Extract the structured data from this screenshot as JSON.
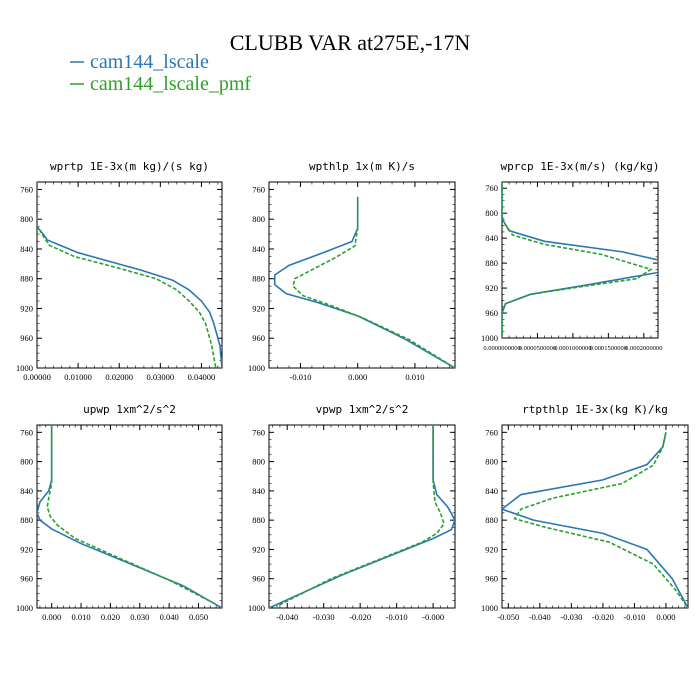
{
  "figure": {
    "title": "CLUBB VAR at275E,-17N",
    "legend": [
      {
        "label": "cam144_lscale",
        "color": "#2a77b4",
        "dash": "solid"
      },
      {
        "label": "cam144_lscale_pmf",
        "color": "#2ca02c",
        "dash": "dashed"
      }
    ]
  },
  "chart_data": [
    {
      "type": "line",
      "title": "wprtp  1E-3x(m kg)/(s kg)",
      "xlim": [
        0.0,
        0.045
      ],
      "ylim": [
        1000,
        750
      ],
      "yticks": [
        760,
        800,
        840,
        880,
        920,
        960,
        1000
      ],
      "yticklabels": [
        "760",
        "800",
        "840",
        "880",
        "920",
        "960",
        "1000"
      ],
      "xticks": [
        0.0,
        0.01,
        0.02,
        0.03,
        0.04
      ],
      "xticklabels": [
        "0.00000",
        "0.01000",
        "0.02000",
        "0.03000",
        "0.04000"
      ],
      "series": [
        {
          "x": [
            0.0,
            0.0,
            0.0015,
            0.0025,
            0.01,
            0.025,
            0.033,
            0.037,
            0.04,
            0.042,
            0.043,
            0.0445,
            0.045
          ],
          "y": [
            750,
            810,
            820,
            828,
            845,
            868,
            882,
            895,
            910,
            925,
            940,
            970,
            1000
          ]
        },
        {
          "x": [
            0.0,
            0.0,
            0.0012,
            0.003,
            0.009,
            0.02,
            0.029,
            0.034,
            0.037,
            0.0395,
            0.041,
            0.0425,
            0.0435
          ],
          "y": [
            750,
            808,
            820,
            835,
            850,
            866,
            880,
            895,
            910,
            925,
            940,
            970,
            1000
          ]
        }
      ]
    },
    {
      "type": "line",
      "title": "wpthlp  1x(m K)/s",
      "xlim": [
        -0.0155,
        0.017
      ],
      "ylim": [
        1000,
        750
      ],
      "yticks": [
        760,
        800,
        840,
        880,
        920,
        960,
        1000
      ],
      "yticklabels": [
        "760",
        "800",
        "840",
        "880",
        "920",
        "960",
        "1000"
      ],
      "xticks": [
        -0.01,
        0.0,
        0.01
      ],
      "xticklabels": [
        "-0.010",
        "0.000",
        "0.010"
      ],
      "series": [
        {
          "x": [
            0.0,
            0.0,
            -0.001,
            -0.006,
            -0.012,
            -0.0145,
            -0.0145,
            -0.0125,
            -0.007,
            0.0,
            0.008,
            0.017
          ],
          "y": [
            770,
            812,
            830,
            845,
            862,
            875,
            888,
            900,
            912,
            930,
            960,
            1000
          ]
        },
        {
          "x": [
            0.0,
            0.0,
            -0.0005,
            -0.004,
            -0.008,
            -0.011,
            -0.0113,
            -0.0095,
            -0.005,
            0.001,
            0.009,
            0.017
          ],
          "y": [
            770,
            812,
            836,
            852,
            868,
            880,
            890,
            903,
            915,
            933,
            962,
            1000
          ]
        }
      ]
    },
    {
      "type": "line",
      "title": "wprcp  1E-3x(m/s) (kg/kg)",
      "xlim": [
        0.0,
        0.00022
      ],
      "ylim": [
        1000,
        750
      ],
      "yticks": [
        760,
        800,
        840,
        880,
        920,
        960,
        1000
      ],
      "yticklabels": [
        "760",
        "800",
        "840",
        "880",
        "920",
        "960",
        "1000"
      ],
      "xticks": [
        0.0,
        5e-05,
        0.0001,
        0.00015,
        0.0002
      ],
      "xticklabels": [
        "0.0000000000",
        "0.0000500000",
        "0.0001000000",
        "0.0001500000",
        "0.0002000000"
      ],
      "series": [
        {
          "x": [
            0.0,
            0.0,
            5e-07,
            1e-05,
            6e-05,
            0.00017,
            0.00022,
            0.00022,
            0.00012,
            4e-05,
            5e-06,
            0.0,
            0.0
          ],
          "y": [
            750,
            800,
            810,
            828,
            845,
            862,
            875,
            895,
            915,
            930,
            945,
            960,
            1000
          ]
        },
        {
          "x": [
            0.0,
            0.0,
            3e-06,
            1.5e-05,
            6e-05,
            0.00014,
            0.00021,
            0.00019,
            0.00011,
            4e-05,
            5e-06,
            0.0,
            0.0
          ],
          "y": [
            750,
            803,
            815,
            835,
            850,
            866,
            890,
            905,
            918,
            930,
            945,
            960,
            1000
          ]
        }
      ]
    },
    {
      "type": "line",
      "title": "upwp  1xm^2/s^2",
      "xlim": [
        -0.005,
        0.058
      ],
      "ylim": [
        1000,
        750
      ],
      "yticks": [
        760,
        800,
        840,
        880,
        920,
        960,
        1000
      ],
      "yticklabels": [
        "760",
        "800",
        "840",
        "880",
        "920",
        "960",
        "1000"
      ],
      "xticks": [
        0.0,
        0.01,
        0.02,
        0.03,
        0.04,
        0.05
      ],
      "xticklabels": [
        "0.000",
        "0.010",
        "0.020",
        "0.030",
        "0.040",
        "0.050"
      ],
      "series": [
        {
          "x": [
            0.0,
            0.0,
            -0.001,
            -0.004,
            -0.005,
            -0.004,
            0.0,
            0.01,
            0.03,
            0.045,
            0.058
          ],
          "y": [
            750,
            825,
            840,
            855,
            870,
            880,
            892,
            912,
            945,
            970,
            1000
          ]
        },
        {
          "x": [
            0.0,
            0.0,
            -0.001,
            -0.0015,
            -0.0005,
            0.002,
            0.008,
            0.022,
            0.04,
            0.056
          ],
          "y": [
            750,
            830,
            850,
            862,
            875,
            887,
            905,
            930,
            962,
            995
          ]
        }
      ]
    },
    {
      "type": "line",
      "title": "vpwp  1xm^2/s^2",
      "xlim": [
        -0.045,
        0.006
      ],
      "ylim": [
        1000,
        750
      ],
      "yticks": [
        760,
        800,
        840,
        880,
        920,
        960,
        1000
      ],
      "yticklabels": [
        "760",
        "800",
        "840",
        "880",
        "920",
        "960",
        "1000"
      ],
      "xticks": [
        -0.04,
        -0.03,
        -0.02,
        -0.01,
        0.0
      ],
      "xticklabels": [
        "-0.040",
        "-0.030",
        "-0.020",
        "-0.010",
        "-0.000"
      ],
      "series": [
        {
          "x": [
            0.0,
            0.0,
            0.001,
            0.004,
            0.006,
            0.005,
            0.0,
            -0.01,
            -0.025,
            -0.045
          ],
          "y": [
            750,
            825,
            845,
            862,
            880,
            893,
            905,
            925,
            955,
            1000
          ]
        },
        {
          "x": [
            0.0,
            0.0,
            0.0005,
            0.002,
            0.003,
            0.001,
            -0.003,
            -0.013,
            -0.028,
            -0.043
          ],
          "y": [
            750,
            828,
            855,
            870,
            885,
            898,
            910,
            930,
            960,
            998
          ]
        }
      ]
    },
    {
      "type": "line",
      "title": "rtpthlp  1E-3x(kg K)/kg",
      "xlim": [
        -0.052,
        0.007
      ],
      "ylim": [
        1000,
        750
      ],
      "yticks": [
        760,
        800,
        840,
        880,
        920,
        960,
        1000
      ],
      "yticklabels": [
        "760",
        "800",
        "840",
        "880",
        "920",
        "960",
        "1000"
      ],
      "xticks": [
        -0.05,
        -0.04,
        -0.03,
        -0.02,
        -0.01,
        0.0
      ],
      "xticklabels": [
        "-0.050",
        "-0.040",
        "-0.030",
        "-0.020",
        "-0.010",
        "0.000"
      ],
      "series": [
        {
          "x": [
            0.0,
            -0.001,
            -0.006,
            -0.02,
            -0.046,
            -0.052,
            -0.042,
            -0.02,
            -0.006,
            0.002,
            0.007
          ],
          "y": [
            760,
            780,
            804,
            825,
            845,
            865,
            880,
            898,
            920,
            960,
            1000
          ]
        },
        {
          "x": [
            0.0,
            -0.001,
            -0.004,
            -0.014,
            -0.036,
            -0.046,
            -0.048,
            -0.038,
            -0.018,
            -0.004,
            0.003,
            0.007
          ],
          "y": [
            760,
            780,
            805,
            830,
            850,
            865,
            878,
            890,
            910,
            940,
            975,
            1000
          ]
        }
      ]
    }
  ]
}
